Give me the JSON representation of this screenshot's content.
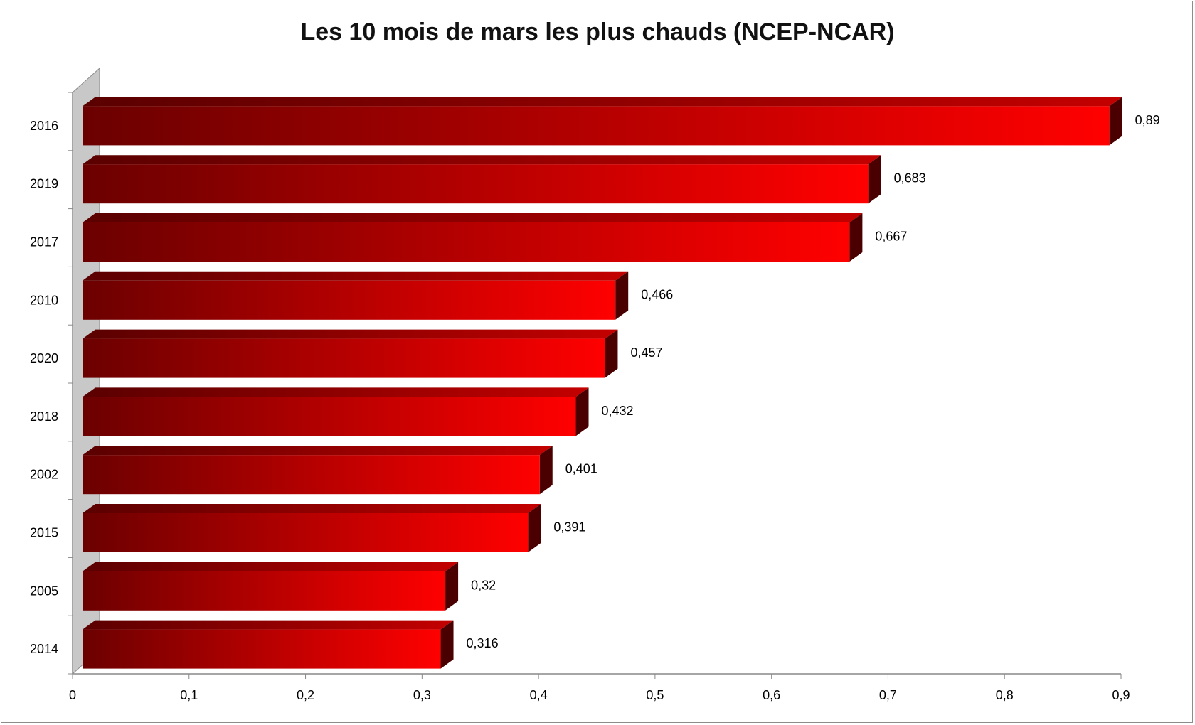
{
  "chart_data": {
    "type": "bar",
    "orientation": "horizontal",
    "title": "Les 10 mois de mars les plus chauds (NCEP-NCAR)",
    "categories": [
      "2016",
      "2019",
      "2017",
      "2010",
      "2020",
      "2018",
      "2002",
      "2015",
      "2005",
      "2014"
    ],
    "values": [
      0.89,
      0.683,
      0.667,
      0.466,
      0.457,
      0.432,
      0.401,
      0.391,
      0.32,
      0.316
    ],
    "data_labels": [
      "0,89",
      "0,683",
      "0,667",
      "0,466",
      "0,457",
      "0,432",
      "0,401",
      "0,391",
      "0,32",
      "0,316"
    ],
    "xlim": [
      0,
      0.9
    ],
    "x_ticks": [
      0,
      0.1,
      0.2,
      0.3,
      0.4,
      0.5,
      0.6,
      0.7,
      0.8,
      0.9
    ],
    "x_tick_labels": [
      "0",
      "0,1",
      "0,2",
      "0,3",
      "0,4",
      "0,5",
      "0,6",
      "0,7",
      "0,8",
      "0,9"
    ],
    "xlabel": "",
    "ylabel": "",
    "grid": false,
    "legend": "none",
    "style": "3d-bars",
    "colors": {
      "bar_dark": "#6b0000",
      "bar_light": "#ff0000",
      "bar_side": "#4a0000",
      "wall": "#c0c0c0"
    }
  }
}
